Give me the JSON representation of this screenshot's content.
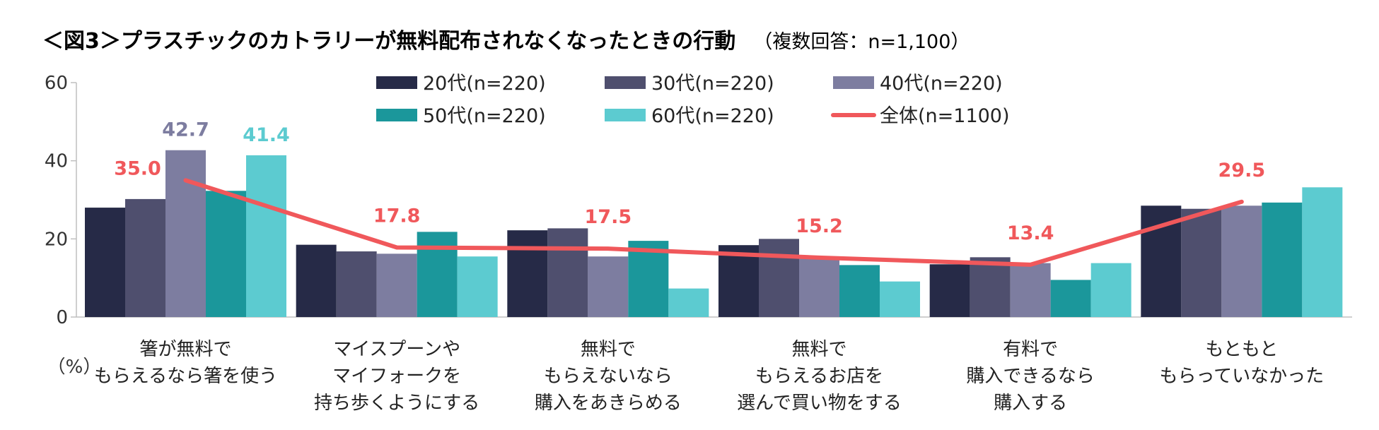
{
  "chart_data": {
    "type": "bar",
    "title": "＜図3＞プラスチックのカトラリーが無料配布されなくなったときの行動",
    "subtitle": "（複数回答：n=1,100）",
    "ylabel": "（%）",
    "ylim": [
      0,
      60
    ],
    "yticks": [
      0,
      20,
      40,
      60
    ],
    "categories": [
      [
        "箸が無料で",
        "もらえるなら箸を使う"
      ],
      [
        "マイスプーンや",
        "マイフォークを",
        "持ち歩くようにする"
      ],
      [
        "無料で",
        "もらえないなら",
        "購入をあきらめる"
      ],
      [
        "無料で",
        "もらえるお店を",
        "選んで買い物をする"
      ],
      [
        "有料で",
        "購入できるなら",
        "購入する"
      ],
      [
        "もともと",
        "もらっていなかった"
      ]
    ],
    "series": [
      {
        "name": "20代(n=220)",
        "color": "#262a47",
        "values": [
          28.0,
          18.5,
          22.2,
          18.4,
          13.5,
          28.5
        ]
      },
      {
        "name": "30代(n=220)",
        "color": "#4f4f6e",
        "values": [
          30.2,
          16.8,
          22.7,
          20.0,
          15.3,
          27.7
        ]
      },
      {
        "name": "40代(n=220)",
        "color": "#7d7da0",
        "values": [
          42.7,
          16.2,
          15.5,
          15.0,
          13.8,
          28.5
        ]
      },
      {
        "name": "50代(n=220)",
        "color": "#1b979b",
        "values": [
          32.3,
          21.8,
          19.5,
          13.3,
          9.5,
          29.3
        ]
      },
      {
        "name": "60代(n=220)",
        "color": "#5ccbd0",
        "values": [
          41.4,
          15.5,
          7.3,
          9.1,
          13.8,
          33.2
        ]
      }
    ],
    "line": {
      "name": "全体(n=1100)",
      "color": "#f0585b",
      "values": [
        35.0,
        17.8,
        17.5,
        15.2,
        13.4,
        29.5
      ]
    },
    "data_labels": [
      {
        "text": "35.0",
        "category": 0,
        "ref": "line",
        "color": "#f0585b"
      },
      {
        "text": "42.7",
        "category": 0,
        "ref": "series-2",
        "color": "#7d7da0"
      },
      {
        "text": "41.4",
        "category": 0,
        "ref": "series-4",
        "color": "#5ccbd0"
      },
      {
        "text": "17.8",
        "category": 1,
        "ref": "line",
        "color": "#f0585b"
      },
      {
        "text": "17.5",
        "category": 2,
        "ref": "line",
        "color": "#f0585b"
      },
      {
        "text": "15.2",
        "category": 3,
        "ref": "line",
        "color": "#f0585b"
      },
      {
        "text": "13.4",
        "category": 4,
        "ref": "line",
        "color": "#f0585b"
      },
      {
        "text": "29.5",
        "category": 5,
        "ref": "line",
        "color": "#f0585b"
      }
    ]
  }
}
